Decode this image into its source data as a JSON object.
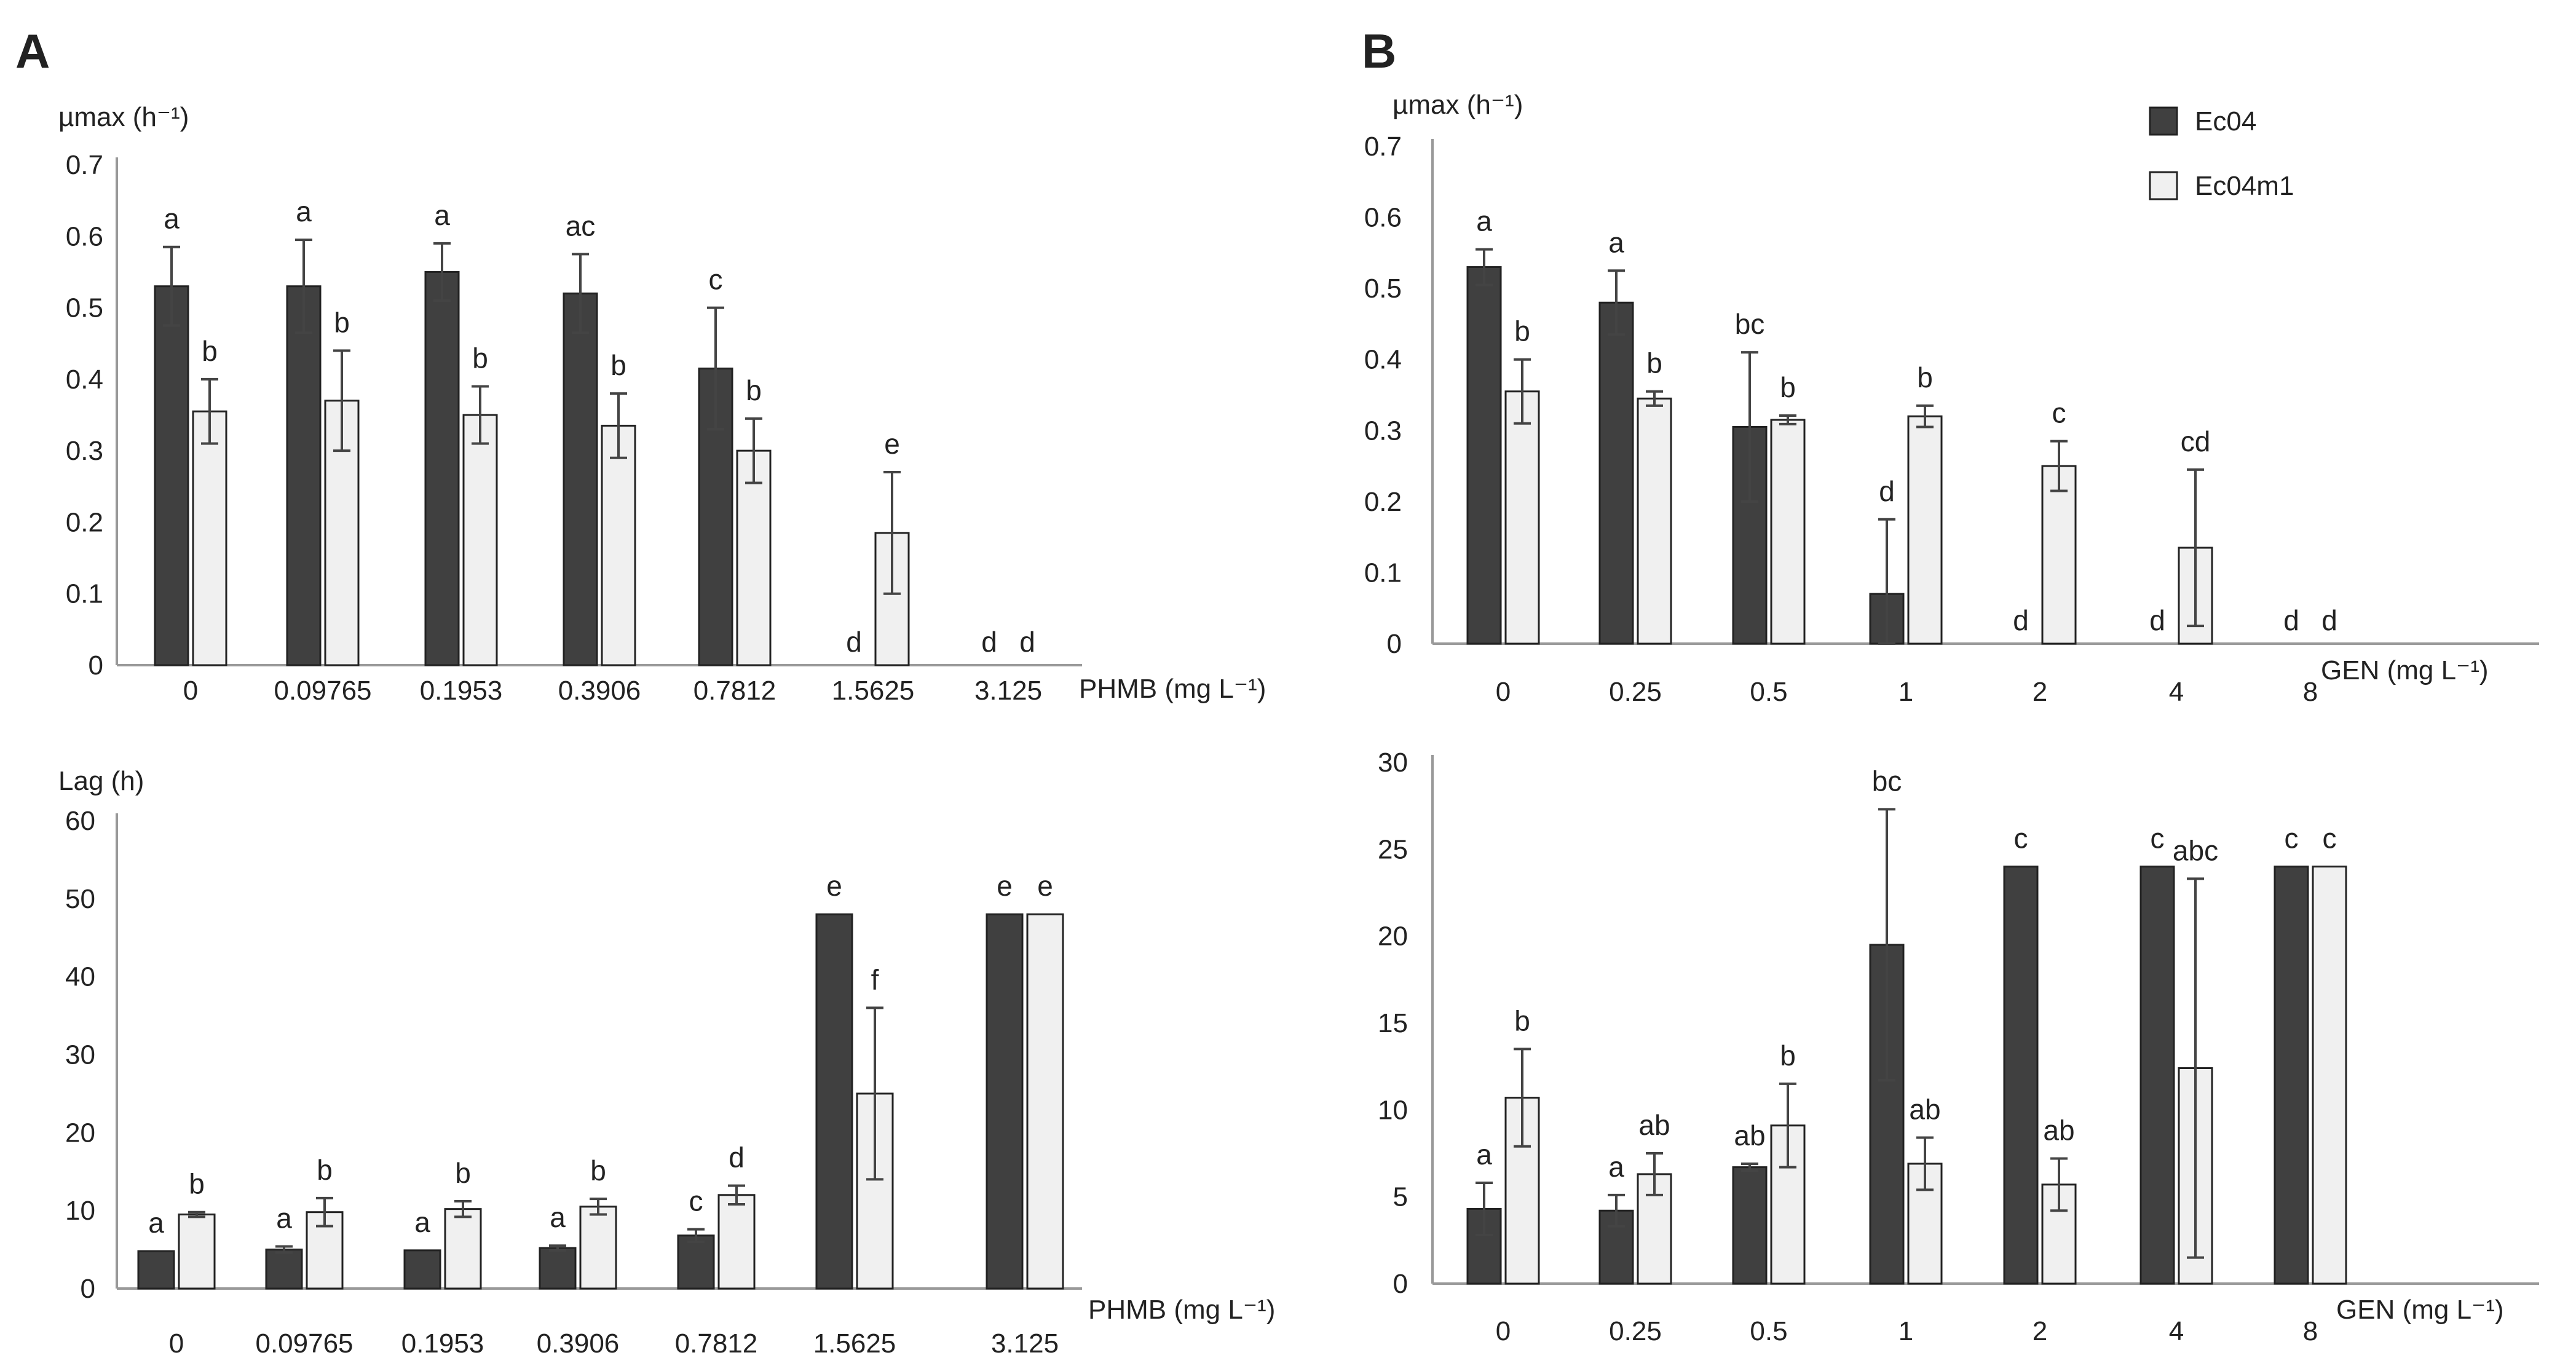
{
  "panels": [
    {
      "letter": "A"
    },
    {
      "letter": "B"
    }
  ],
  "legend": {
    "entries": [
      {
        "label": "Ec04",
        "color": "#404040"
      },
      {
        "label": "Ec04m1",
        "color": "#f0f0f0"
      }
    ]
  },
  "colors": {
    "dark_bar": "#404040",
    "light_bar": "#f0f0f0",
    "bar_edge": "#222222",
    "axis": "#999999",
    "error_bar": "#444444"
  },
  "chart_data": [
    {
      "id": "a-top",
      "panel": "A",
      "type": "bar",
      "ylabel": "µmax (h⁻¹)",
      "xlabel": "PHMB (mg L⁻¹)",
      "ylim": [
        0,
        0.7
      ],
      "yticks": [
        "0",
        "0.1",
        "0.2",
        "0.3",
        "0.4",
        "0.5",
        "0.6",
        "0.7"
      ],
      "categories": [
        "0",
        "0.09765",
        "0.1953",
        "0.3906",
        "0.7812",
        "1.5625",
        "3.125"
      ],
      "series": [
        {
          "name": "Ec04",
          "values": [
            0.53,
            0.53,
            0.55,
            0.52,
            0.415,
            0,
            0
          ],
          "errors": [
            0.055,
            0.065,
            0.04,
            0.055,
            0.085,
            0,
            0
          ],
          "letters": [
            "a",
            "a",
            "a",
            "ac",
            "c",
            "d",
            "d"
          ]
        },
        {
          "name": "Ec04m1",
          "values": [
            0.355,
            0.37,
            0.35,
            0.335,
            0.3,
            0.185,
            0
          ],
          "errors": [
            0.045,
            0.07,
            0.04,
            0.045,
            0.045,
            0.085,
            0
          ],
          "letters": [
            "b",
            "b",
            "b",
            "b",
            "b",
            "e",
            "d"
          ]
        }
      ]
    },
    {
      "id": "a-bottom",
      "panel": "A",
      "type": "bar",
      "ylabel": "Lag (h)",
      "xlabel": "PHMB (mg L⁻¹)",
      "ylim": [
        0,
        60
      ],
      "yticks": [
        "0",
        "10",
        "20",
        "30",
        "40",
        "50",
        "60"
      ],
      "categories": [
        "0",
        "0.09765",
        "0.1953",
        "0.3906",
        "0.7812",
        "1.5625",
        "3.125"
      ],
      "series": [
        {
          "name": "Ec04",
          "values": [
            4.8,
            5.0,
            4.9,
            5.2,
            6.8,
            48,
            48
          ],
          "errors": [
            0,
            0.4,
            0,
            0.3,
            0.8,
            0,
            0
          ],
          "letters": [
            "a",
            "a",
            "a",
            "a",
            "c",
            "e",
            "e"
          ]
        },
        {
          "name": "Ec04m1",
          "values": [
            9.5,
            9.8,
            10.2,
            10.5,
            12.0,
            25,
            48
          ],
          "errors": [
            0.3,
            1.8,
            1.0,
            1.0,
            1.2,
            11,
            0
          ],
          "letters": [
            "b",
            "b",
            "b",
            "b",
            "d",
            "f",
            "e"
          ]
        }
      ]
    },
    {
      "id": "b-top",
      "panel": "B",
      "type": "bar",
      "ylabel": "µmax (h⁻¹)",
      "xlabel": "GEN (mg L⁻¹)",
      "ylim": [
        0,
        0.7
      ],
      "yticks": [
        "0",
        "0.1",
        "0.2",
        "0.3",
        "0.4",
        "0.5",
        "0.6",
        "0.7"
      ],
      "categories": [
        "0",
        "0.25",
        "0.5",
        "1",
        "2",
        "4",
        "8"
      ],
      "series": [
        {
          "name": "Ec04",
          "values": [
            0.53,
            0.48,
            0.305,
            0.07,
            0,
            0,
            0
          ],
          "errors": [
            0.025,
            0.045,
            0.105,
            0.105,
            0,
            0,
            0
          ],
          "letters": [
            "a",
            "a",
            "bc",
            "d",
            "d",
            "d",
            "d"
          ]
        },
        {
          "name": "Ec04m1",
          "values": [
            0.355,
            0.345,
            0.315,
            0.32,
            0.25,
            0.135,
            0
          ],
          "errors": [
            0.045,
            0.01,
            0.006,
            0.015,
            0.035,
            0.11,
            0
          ],
          "letters": [
            "b",
            "b",
            "b",
            "b",
            "c",
            "cd",
            "d"
          ]
        }
      ]
    },
    {
      "id": "b-bottom",
      "panel": "B",
      "type": "bar",
      "ylabel": "",
      "xlabel": "GEN (mg L⁻¹)",
      "ylim": [
        0,
        30
      ],
      "yticks": [
        "0",
        "5",
        "10",
        "15",
        "20",
        "25",
        "30"
      ],
      "categories": [
        "0",
        "0.25",
        "0.5",
        "1",
        "2",
        "4",
        "8"
      ],
      "series": [
        {
          "name": "Ec04",
          "values": [
            4.3,
            4.2,
            6.7,
            19.5,
            24,
            24,
            24
          ],
          "errors": [
            1.5,
            0.9,
            0.2,
            7.8,
            0,
            0,
            0
          ],
          "letters": [
            "a",
            "a",
            "ab",
            "bc",
            "c",
            "c",
            "c"
          ]
        },
        {
          "name": "Ec04m1",
          "values": [
            10.7,
            6.3,
            9.1,
            6.9,
            5.7,
            12.4,
            24
          ],
          "errors": [
            2.8,
            1.2,
            2.4,
            1.5,
            1.5,
            10.9,
            0
          ],
          "letters": [
            "b",
            "ab",
            "b",
            "ab",
            "ab",
            "abc",
            "c"
          ]
        }
      ]
    }
  ]
}
